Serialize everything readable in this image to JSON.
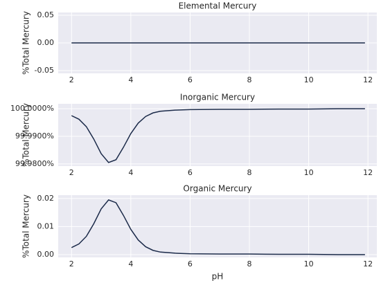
{
  "chart_data": [
    {
      "type": "line",
      "title": "Elemental Mercury",
      "ylabel": "%Total Mercury",
      "x": [
        2,
        2.25,
        2.5,
        2.75,
        3,
        3.25,
        3.5,
        3.75,
        4,
        4.25,
        4.5,
        4.75,
        5,
        5.5,
        6,
        7,
        8,
        9,
        10,
        11,
        11.9
      ],
      "series": [
        {
          "color": "#1b2a49",
          "values": [
            0,
            0,
            0,
            0,
            0,
            0,
            0,
            0,
            0,
            0,
            0,
            0,
            0,
            0,
            0,
            0,
            0,
            0,
            0,
            0,
            0
          ]
        }
      ],
      "xlim": [
        1.55,
        12.3
      ],
      "xticks": [
        2,
        4,
        6,
        8,
        10,
        12
      ],
      "ylim": [
        -0.055,
        0.055
      ],
      "yticks": [
        {
          "value": 0.05,
          "label": "0.05"
        },
        {
          "value": 0,
          "label": "0.00"
        },
        {
          "value": -0.05,
          "label": "-0.05"
        }
      ],
      "grid": true
    },
    {
      "type": "line",
      "title": "Inorganic Mercury",
      "ylabel": "%Total Mercury",
      "x": [
        2,
        2.25,
        2.5,
        2.75,
        3,
        3.25,
        3.5,
        3.75,
        4,
        4.25,
        4.5,
        4.75,
        5,
        5.5,
        6,
        7,
        8,
        9,
        10,
        11,
        11.9
      ],
      "series": [
        {
          "color": "#1b2a49",
          "values": [
            99.9975,
            99.9962,
            99.9935,
            99.989,
            99.9837,
            99.9805,
            99.9815,
            99.986,
            99.991,
            99.9948,
            99.9972,
            99.9985,
            99.9991,
            99.9995,
            99.9997,
            99.9998,
            99.9998,
            99.9999,
            99.9999,
            100,
            100
          ]
        }
      ],
      "xlim": [
        1.55,
        12.3
      ],
      "xticks": [
        2,
        4,
        6,
        8,
        10,
        12
      ],
      "ylim": [
        99.9792,
        100.0018
      ],
      "yticks": [
        {
          "value": 100,
          "label": "100.0000%"
        },
        {
          "value": 99.99,
          "label": "99.9900%"
        },
        {
          "value": 99.98,
          "label": "99.9800%"
        }
      ],
      "grid": true
    },
    {
      "type": "line",
      "title": "Organic Mercury",
      "ylabel": "%Total Mercury",
      "xlabel": "pH",
      "x": [
        2,
        2.25,
        2.5,
        2.75,
        3,
        3.25,
        3.5,
        3.75,
        4,
        4.25,
        4.5,
        4.75,
        5,
        5.5,
        6,
        7,
        8,
        9,
        10,
        11,
        11.9
      ],
      "series": [
        {
          "color": "#1b2a49",
          "values": [
            0.0025,
            0.0038,
            0.0065,
            0.011,
            0.0163,
            0.0195,
            0.0185,
            0.014,
            0.009,
            0.0052,
            0.0028,
            0.0015,
            0.0009,
            0.0005,
            0.0003,
            0.0002,
            0.0002,
            0.0001,
            0.0001,
            0,
            0
          ]
        }
      ],
      "xlim": [
        1.55,
        12.3
      ],
      "xticks": [
        2,
        4,
        6,
        8,
        10,
        12
      ],
      "ylim": [
        -0.001,
        0.0212
      ],
      "yticks": [
        {
          "value": 0.02,
          "label": "0.02"
        },
        0.01,
        {
          "value": 0,
          "label": "0.00"
        }
      ],
      "grid": true
    }
  ]
}
